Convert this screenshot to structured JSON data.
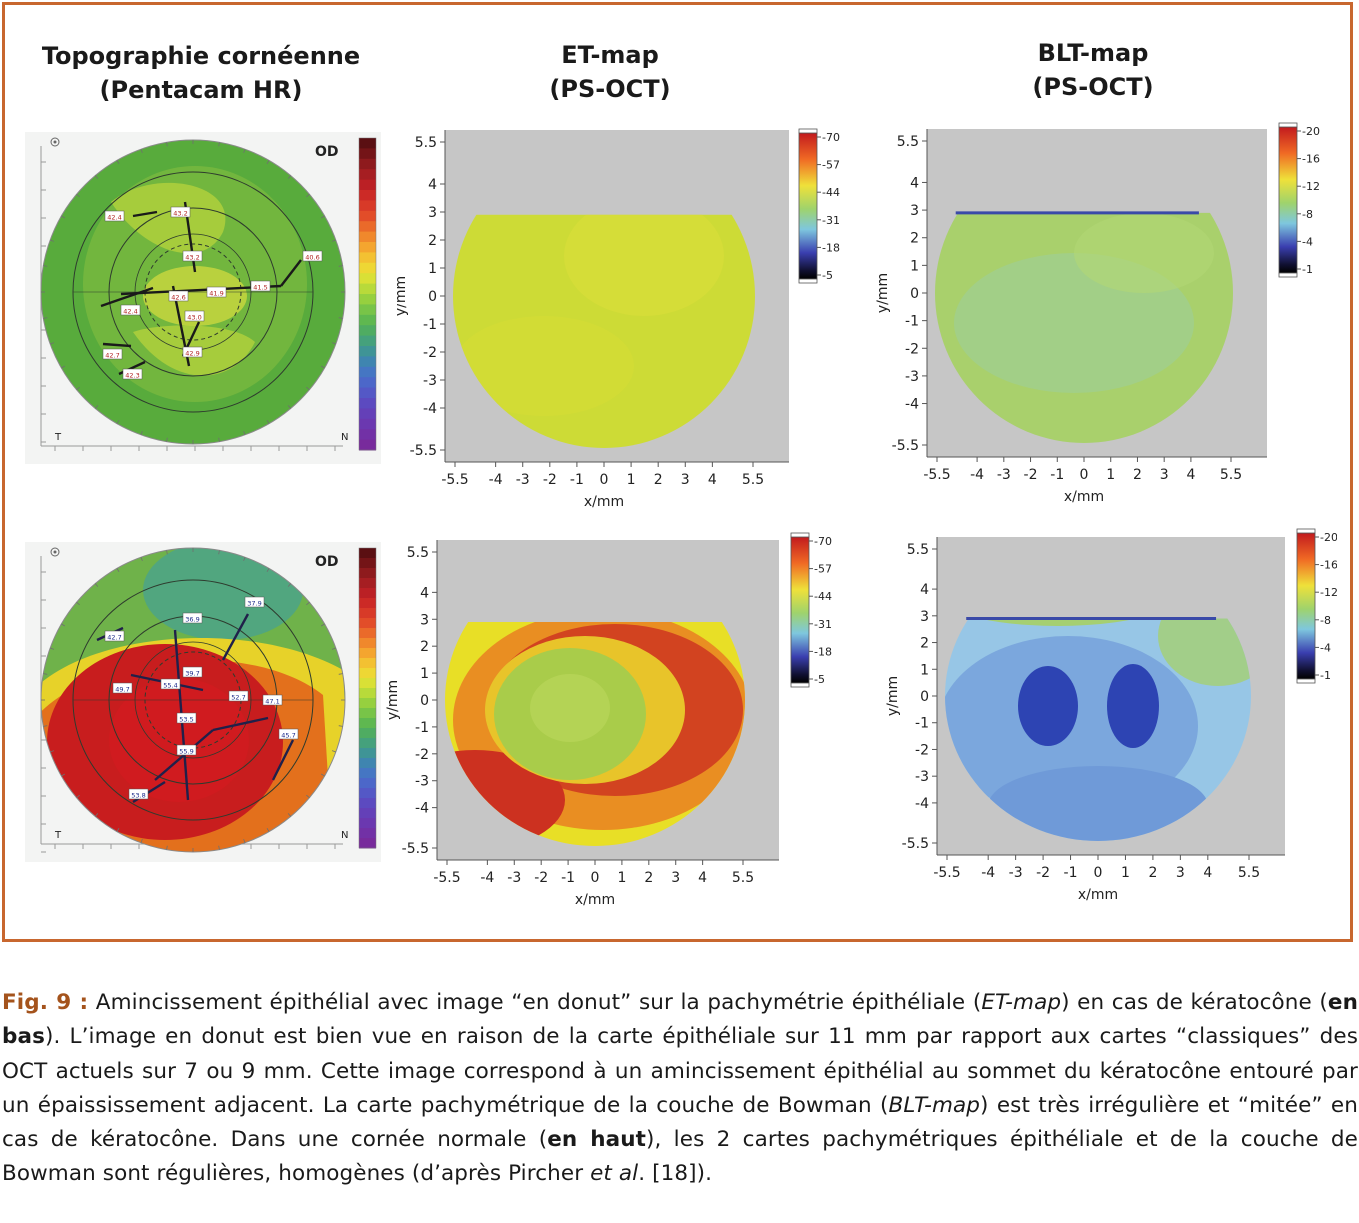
{
  "figure": {
    "columns": [
      {
        "line1": "Topographie cornéenne",
        "line2": "(Pentacam HR)"
      },
      {
        "line1": "ET-map",
        "line2": "(PS-OCT)"
      },
      {
        "line1": "BLT-map",
        "line2": "(PS-OCT)"
      }
    ],
    "topography": {
      "eye_label": "OD",
      "temporal_label": "T",
      "nasal_label": "N",
      "top": {
        "values": [
          "42.4",
          "43.2",
          "43.2",
          "42.6",
          "41.9",
          "41.5",
          "40.6",
          "42.4",
          "43.0",
          "42.7",
          "42.9",
          "42.3"
        ],
        "colors": {
          "outer": "#58ab3c",
          "inner": "#a6cc3c",
          "center": "#cbd83e"
        }
      },
      "bottom": {
        "values": [
          "42.7",
          "36.9",
          "37.9",
          "39.7",
          "49.7",
          "55.4",
          "52.7",
          "47.1",
          "53.5",
          "55.9",
          "53.8",
          "45.7"
        ],
        "colors": {
          "green": "#6fb24a",
          "yellow": "#e7d229",
          "orange": "#e3701c",
          "red": "#c81d1e"
        }
      },
      "colorbar": [
        "#5a0f12",
        "#741417",
        "#8e1a1d",
        "#a61e22",
        "#bb2025",
        "#cc2a26",
        "#d83a28",
        "#e24d29",
        "#ea6a2a",
        "#f0882c",
        "#f4a52f",
        "#f3c132",
        "#eed734",
        "#d9e036",
        "#b8da3a",
        "#96d03f",
        "#78c448",
        "#5fb850",
        "#4fac62",
        "#45a17c",
        "#3f9496",
        "#3f85b0",
        "#4576c3",
        "#4c67c9",
        "#5458c6",
        "#5c4ac0",
        "#6440b8",
        "#6b38b0",
        "#7231a6",
        "#782b9c"
      ]
    },
    "et_map": {
      "y_axis_label": "y/mm",
      "x_axis_label": "x/mm",
      "x_ticks": [
        "-5.5",
        "-4",
        "-3",
        "-2",
        "-1",
        "0",
        "1",
        "2",
        "3",
        "4",
        "5.5"
      ],
      "y_ticks": [
        "5.5",
        "4",
        "3",
        "2",
        "1",
        "0",
        "-1",
        "-2",
        "-3",
        "-4",
        "-5.5"
      ],
      "colorbar_ticks": [
        "70",
        "57",
        "44",
        "31",
        "18",
        "5"
      ],
      "top_fill": "#cddb36",
      "bottom_colors": {
        "yellow": "#e8df26",
        "orange": "#e98e22",
        "red": "#cc3120",
        "center": "#a9cc4a"
      }
    },
    "blt_map": {
      "y_axis_label": "y/mm",
      "x_axis_label": "x/mm",
      "x_ticks": [
        "-5.5",
        "-4",
        "-3",
        "-2",
        "-1",
        "0",
        "1",
        "2",
        "3",
        "4",
        "5.5"
      ],
      "y_ticks": [
        "5.5",
        "4",
        "3",
        "2",
        "1",
        "0",
        "-1",
        "-2",
        "-3",
        "-4",
        "-5.5"
      ],
      "colorbar_ticks": [
        "20",
        "16",
        "12",
        "8",
        "4",
        "1"
      ],
      "top_fill": "#a9d06c",
      "bottom_colors": {
        "green": "#a5cf72",
        "light": "#97c6e6",
        "mid": "#6f9ad8",
        "dark": "#2d44b3"
      }
    }
  },
  "caption": {
    "label": "Fig. 9 :",
    "t1": " Amincissement épithélial avec image “en donut” sur la pachymétrie épithéliale (",
    "i1": "ET-map",
    "t2": ") en cas de kératocône (",
    "b1": "en bas",
    "t3": "). L’image en donut est bien vue en raison de la carte épithéliale sur 11 mm par rapport aux cartes “classiques” des OCT actuels sur 7 ou 9 mm. Cette image correspond à un amincissement épithélial au sommet du kératocône entouré par un épaississement adjacent. La carte pachymétrique de la couche de Bowman (",
    "i2": "BLT-map",
    "t4": ") est très irrégulière et “mitée” en cas de kératocône. Dans une cornée normale (",
    "b2": "en haut",
    "t5": "), les 2 cartes pachymétriques épithéliale et de la couche de Bowman sont régulières, homogènes (d’après Pircher ",
    "i3": "et al",
    "t6": ". [18])."
  }
}
